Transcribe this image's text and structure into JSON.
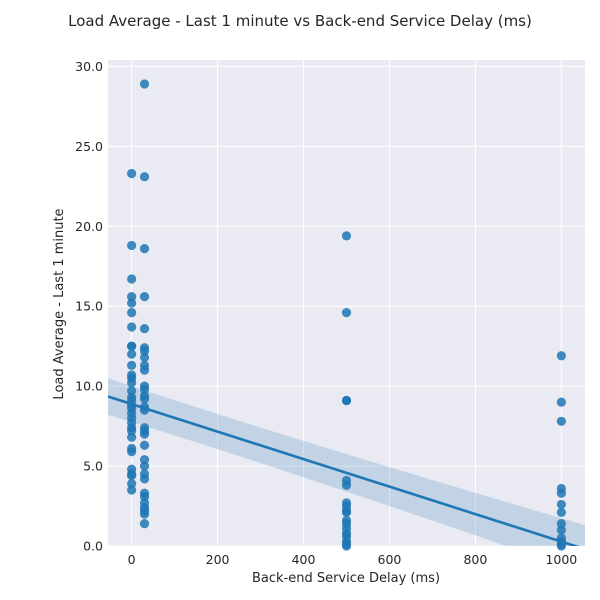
{
  "chart_data": {
    "type": "scatter",
    "title": "Load Average - Last 1 minute vs Back-end Service Delay (ms)",
    "xlabel": "Back-end Service Delay (ms)",
    "ylabel": "Load Average - Last 1 minute",
    "xlim": [
      -55,
      1055
    ],
    "ylim": [
      0,
      30.4
    ],
    "x_ticks": [
      0,
      200,
      400,
      600,
      800,
      1000
    ],
    "x_tick_labels": [
      "0",
      "200",
      "400",
      "600",
      "800",
      "1000"
    ],
    "y_ticks": [
      0,
      5,
      10,
      15,
      20,
      25,
      30
    ],
    "y_tick_labels": [
      "0.0",
      "5.0",
      "10.0",
      "15.0",
      "20.0",
      "25.0",
      "30.0"
    ],
    "grid": true,
    "background_color": "#eaeaf2",
    "point_color": "#1f77b4",
    "line_color": "#1f77b4",
    "points": [
      {
        "x": 0,
        "y": 23.3
      },
      {
        "x": 0,
        "y": 18.8
      },
      {
        "x": 0,
        "y": 16.7
      },
      {
        "x": 0,
        "y": 15.6
      },
      {
        "x": 0,
        "y": 15.2
      },
      {
        "x": 0,
        "y": 14.6
      },
      {
        "x": 0,
        "y": 13.7
      },
      {
        "x": 0,
        "y": 12.5
      },
      {
        "x": 0,
        "y": 12.5
      },
      {
        "x": 0,
        "y": 12.0
      },
      {
        "x": 0,
        "y": 11.3
      },
      {
        "x": 0,
        "y": 10.7
      },
      {
        "x": 0,
        "y": 10.5
      },
      {
        "x": 0,
        "y": 10.2
      },
      {
        "x": 0,
        "y": 9.7
      },
      {
        "x": 0,
        "y": 9.3
      },
      {
        "x": 0,
        "y": 9.1
      },
      {
        "x": 0,
        "y": 8.8
      },
      {
        "x": 0,
        "y": 8.6
      },
      {
        "x": 0,
        "y": 8.3
      },
      {
        "x": 0,
        "y": 8.0
      },
      {
        "x": 0,
        "y": 7.7
      },
      {
        "x": 0,
        "y": 7.4
      },
      {
        "x": 0,
        "y": 7.2
      },
      {
        "x": 0,
        "y": 6.8
      },
      {
        "x": 0,
        "y": 6.1
      },
      {
        "x": 0,
        "y": 5.9
      },
      {
        "x": 0,
        "y": 4.8
      },
      {
        "x": 0,
        "y": 4.5
      },
      {
        "x": 0,
        "y": 4.4
      },
      {
        "x": 0,
        "y": 3.9
      },
      {
        "x": 0,
        "y": 3.5
      },
      {
        "x": 30,
        "y": 28.9
      },
      {
        "x": 30,
        "y": 23.1
      },
      {
        "x": 30,
        "y": 18.6
      },
      {
        "x": 30,
        "y": 15.6
      },
      {
        "x": 30,
        "y": 13.6
      },
      {
        "x": 30,
        "y": 12.4
      },
      {
        "x": 30,
        "y": 12.2
      },
      {
        "x": 30,
        "y": 11.8
      },
      {
        "x": 30,
        "y": 11.3
      },
      {
        "x": 30,
        "y": 11.0
      },
      {
        "x": 30,
        "y": 10.0
      },
      {
        "x": 30,
        "y": 9.8
      },
      {
        "x": 30,
        "y": 9.4
      },
      {
        "x": 30,
        "y": 9.2
      },
      {
        "x": 30,
        "y": 8.7
      },
      {
        "x": 30,
        "y": 8.5
      },
      {
        "x": 30,
        "y": 7.4
      },
      {
        "x": 30,
        "y": 7.2
      },
      {
        "x": 30,
        "y": 7.0
      },
      {
        "x": 30,
        "y": 6.3
      },
      {
        "x": 30,
        "y": 5.4
      },
      {
        "x": 30,
        "y": 5.0
      },
      {
        "x": 30,
        "y": 4.5
      },
      {
        "x": 30,
        "y": 4.2
      },
      {
        "x": 30,
        "y": 3.3
      },
      {
        "x": 30,
        "y": 3.1
      },
      {
        "x": 30,
        "y": 2.7
      },
      {
        "x": 30,
        "y": 2.4
      },
      {
        "x": 30,
        "y": 2.2
      },
      {
        "x": 30,
        "y": 2.0
      },
      {
        "x": 30,
        "y": 1.4
      },
      {
        "x": 500,
        "y": 19.4
      },
      {
        "x": 500,
        "y": 14.6
      },
      {
        "x": 500,
        "y": 9.1
      },
      {
        "x": 500,
        "y": 9.1
      },
      {
        "x": 500,
        "y": 4.1
      },
      {
        "x": 500,
        "y": 3.8
      },
      {
        "x": 500,
        "y": 2.7
      },
      {
        "x": 500,
        "y": 2.5
      },
      {
        "x": 500,
        "y": 2.2
      },
      {
        "x": 500,
        "y": 2.1
      },
      {
        "x": 500,
        "y": 1.6
      },
      {
        "x": 500,
        "y": 1.4
      },
      {
        "x": 500,
        "y": 1.1
      },
      {
        "x": 500,
        "y": 0.8
      },
      {
        "x": 500,
        "y": 0.6
      },
      {
        "x": 500,
        "y": 0.3
      },
      {
        "x": 500,
        "y": 0.1
      },
      {
        "x": 500,
        "y": 0.0
      },
      {
        "x": 1000,
        "y": 11.9
      },
      {
        "x": 1000,
        "y": 9.0
      },
      {
        "x": 1000,
        "y": 7.8
      },
      {
        "x": 1000,
        "y": 3.6
      },
      {
        "x": 1000,
        "y": 3.3
      },
      {
        "x": 1000,
        "y": 2.6
      },
      {
        "x": 1000,
        "y": 2.1
      },
      {
        "x": 1000,
        "y": 1.4
      },
      {
        "x": 1000,
        "y": 1.0
      },
      {
        "x": 1000,
        "y": 0.5
      },
      {
        "x": 1000,
        "y": 0.3
      },
      {
        "x": 1000,
        "y": 0.1
      },
      {
        "x": 1000,
        "y": 0.0
      }
    ],
    "regression": {
      "x_range": [
        -55,
        1055
      ],
      "y_start": 9.35,
      "y_end": -0.2,
      "ci_start": [
        8.2,
        10.5
      ],
      "ci_end": [
        -1.7,
        1.3
      ],
      "ci_mid": {
        "x": 300,
        "lower": 5.7,
        "upper": 6.9
      }
    }
  }
}
